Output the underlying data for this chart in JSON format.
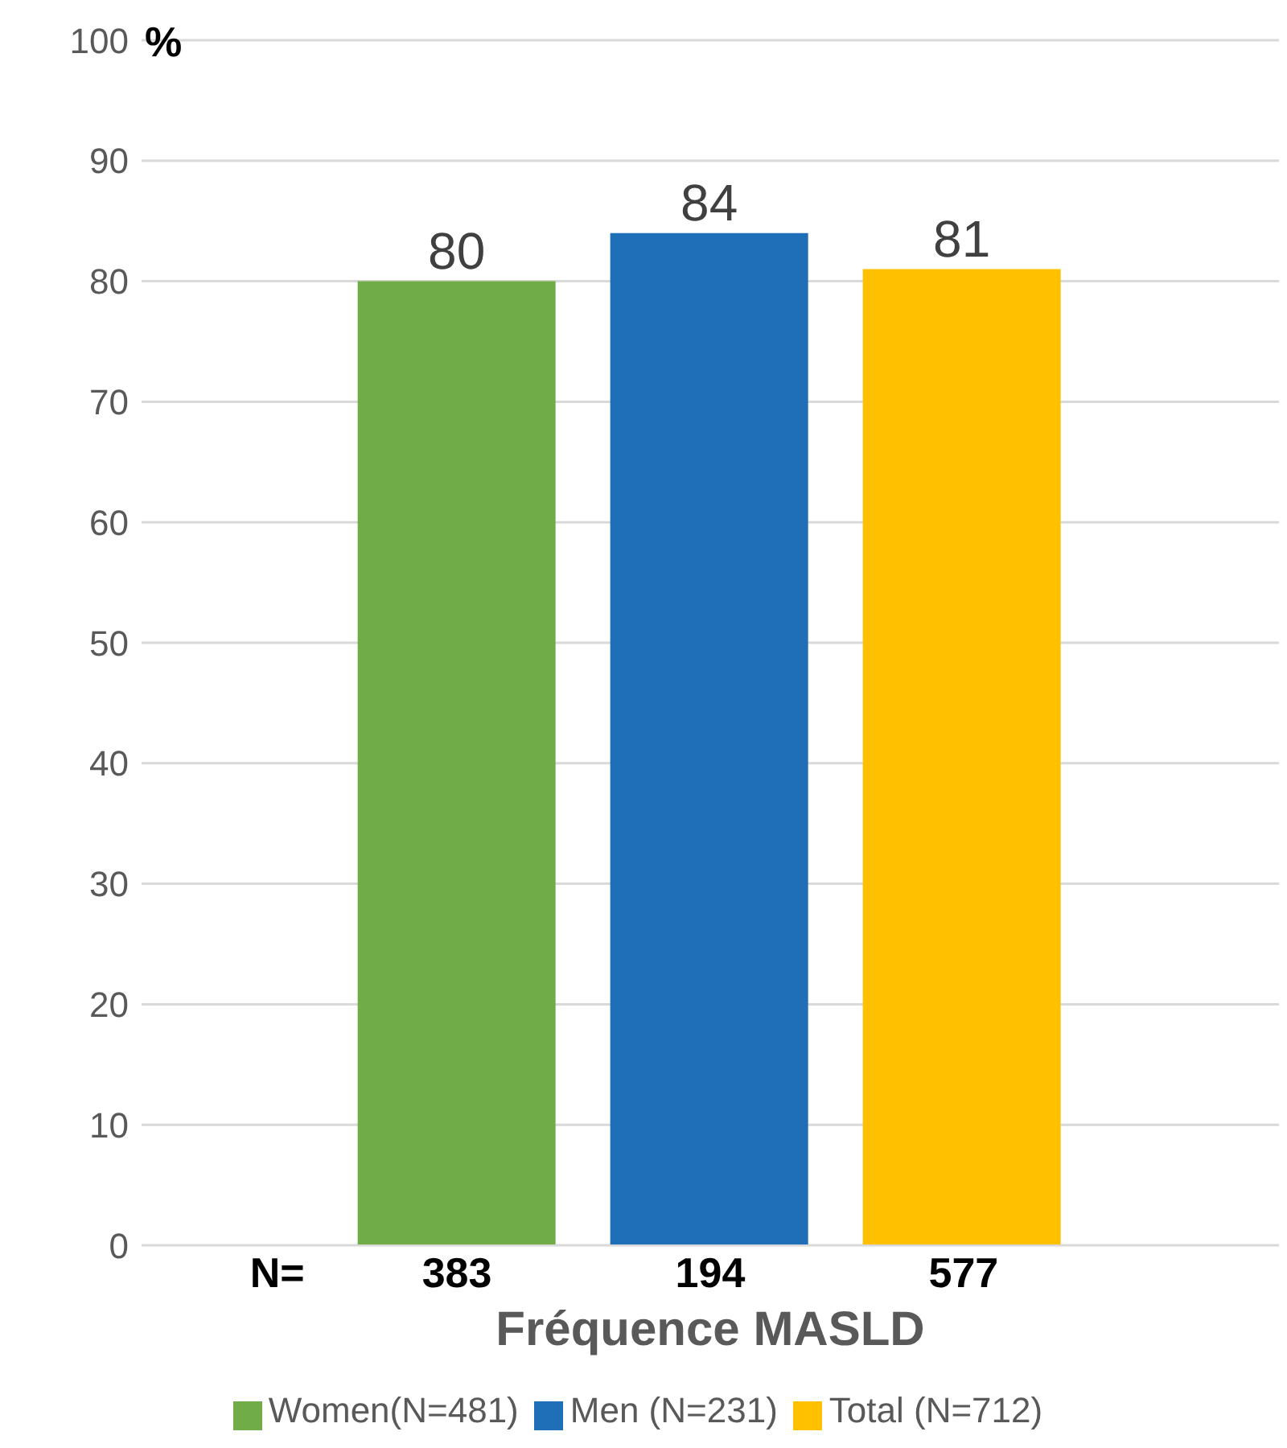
{
  "chart_data": {
    "type": "bar",
    "ylabel": "%",
    "xlabel": "Fréquence MASLD",
    "categories": [
      null
    ],
    "series": [
      {
        "name": "Women(N=481)",
        "color": "#70ad47",
        "values": [
          80
        ]
      },
      {
        "name": "Men (N=231)",
        "color": "#1f6fb8",
        "values": [
          84
        ]
      },
      {
        "name": "Total (N=712)",
        "color": "#ffc000",
        "values": [
          81
        ]
      }
    ],
    "ylim": [
      0,
      100
    ],
    "yticks": [
      0,
      10,
      20,
      30,
      40,
      50,
      60,
      70,
      80,
      90,
      100
    ],
    "grid": "y",
    "legend": "bottom",
    "data_labels": true,
    "annotations": [
      "N=",
      "383",
      "194",
      "577"
    ]
  }
}
